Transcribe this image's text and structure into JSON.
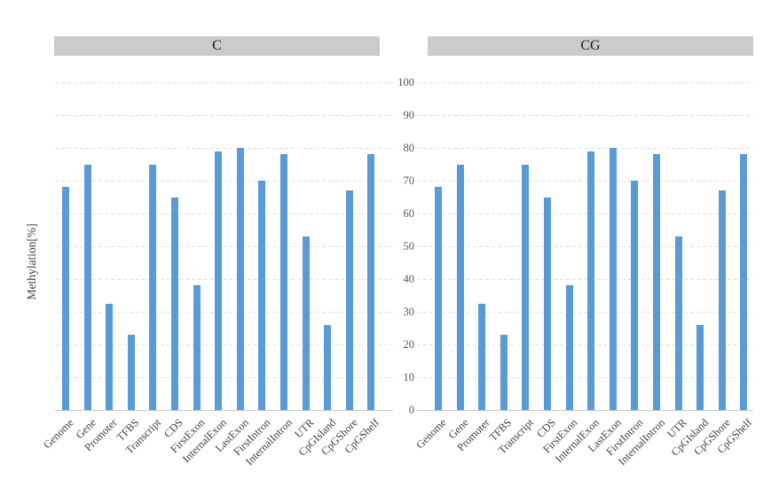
{
  "yaxis": {
    "title": "Methylation[%]",
    "ticks": [
      0,
      10,
      20,
      30,
      40,
      50,
      60,
      70,
      80,
      90,
      100
    ]
  },
  "colors": {
    "bar": "#5b9bd5",
    "strip_bg": "#cbcbcb",
    "gridline": "#e0e0e0",
    "axis_line": "#c9c9c9",
    "tick_text": "#595959",
    "category_text": "#3f3f3f"
  },
  "chart_data": [
    {
      "type": "bar",
      "panel": "C",
      "categories": [
        "Genome",
        "Gene",
        "Promoter",
        "TFBS",
        "Transcript",
        "CDS",
        "FirstExon",
        "InternalExon",
        "LastExon",
        "FirstIntron",
        "InternalIntron",
        "UTR",
        "CpGIsland",
        "CpGShore",
        "CpGShelf"
      ],
      "values": [
        68,
        75,
        32.5,
        23,
        75,
        65,
        38,
        79,
        80,
        70,
        78,
        53,
        26,
        67,
        78
      ],
      "title": "C",
      "xlabel": "",
      "ylabel": "Methylation[%]",
      "ylim": [
        0,
        100
      ],
      "ytick_step": 10,
      "grid": "horizontal-dashed",
      "legend": "none",
      "bar_color": "#5b9bd5"
    },
    {
      "type": "bar",
      "panel": "CG",
      "categories": [
        "Genome",
        "Gene",
        "Promoter",
        "TFBS",
        "Transcript",
        "CDS",
        "FirstExon",
        "InternalExon",
        "LastExon",
        "FirstIntron",
        "InternalIntron",
        "UTR",
        "CpGIsland",
        "CpGShore",
        "CpGShelf"
      ],
      "values": [
        68,
        75,
        32.5,
        23,
        75,
        65,
        38,
        79,
        80,
        70,
        78,
        53,
        26,
        67,
        78
      ],
      "title": "CG",
      "xlabel": "",
      "ylabel": "Methylation[%]",
      "ylim": [
        0,
        100
      ],
      "ytick_step": 10,
      "grid": "horizontal-dashed",
      "legend": "none",
      "bar_color": "#5b9bd5"
    }
  ]
}
